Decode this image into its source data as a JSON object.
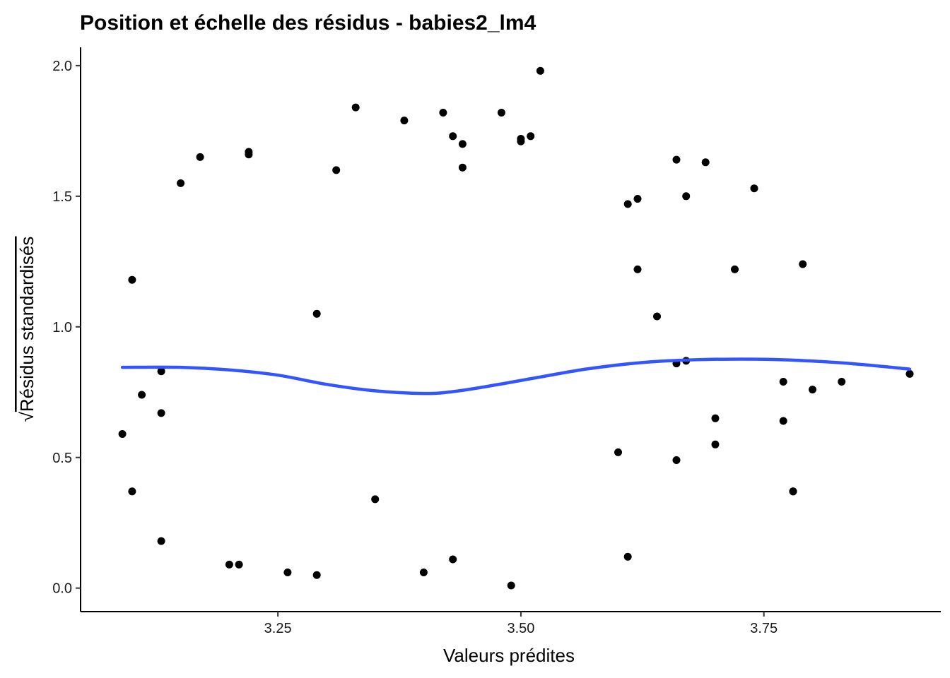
{
  "chart_data": {
    "type": "scatter",
    "title": "Position et échelle des résidus - babies2_lm4",
    "xlabel": "Valeurs prédites",
    "ylabel_radical": "√",
    "ylabel": "Résidus standardisés",
    "xlim": [
      3.047,
      3.932
    ],
    "ylim": [
      -0.09,
      2.07
    ],
    "x_ticks": [
      3.25,
      3.5,
      3.75
    ],
    "x_tick_labels": [
      "3.25",
      "3.50",
      "3.75"
    ],
    "y_ticks": [
      0.0,
      0.5,
      1.0,
      1.5,
      2.0
    ],
    "y_tick_labels": [
      "0.0",
      "0.5",
      "1.0",
      "1.5",
      "2.0"
    ],
    "grid": false,
    "point_color": "#000000",
    "smooth_color": "#3355ff",
    "smooth_line": {
      "x": [
        3.09,
        3.15,
        3.2,
        3.25,
        3.3,
        3.35,
        3.4,
        3.43,
        3.47,
        3.52,
        3.57,
        3.63,
        3.69,
        3.76,
        3.83,
        3.9
      ],
      "y": [
        0.845,
        0.845,
        0.835,
        0.815,
        0.78,
        0.755,
        0.745,
        0.752,
        0.775,
        0.808,
        0.84,
        0.865,
        0.875,
        0.875,
        0.862,
        0.838
      ]
    },
    "points": {
      "x": [
        3.52,
        3.33,
        3.42,
        3.48,
        3.38,
        3.51,
        3.43,
        3.5,
        3.5,
        3.44,
        3.22,
        3.22,
        3.17,
        3.44,
        3.15,
        3.31,
        3.29,
        3.21,
        3.74,
        3.72,
        3.79,
        3.77,
        3.78,
        3.78,
        3.9,
        3.83,
        3.8,
        3.77,
        3.69,
        3.67,
        3.66,
        3.64,
        3.66,
        3.67,
        3.7,
        3.7,
        3.66,
        3.62,
        3.62,
        3.61,
        3.6,
        3.1,
        3.11,
        3.09,
        3.1,
        3.13,
        3.43,
        3.35,
        3.13,
        3.13,
        3.2,
        3.29,
        3.26,
        3.4,
        3.49,
        3.61
      ],
      "y": [
        1.98,
        1.84,
        1.82,
        1.82,
        1.79,
        1.73,
        1.73,
        1.72,
        1.71,
        1.7,
        1.67,
        1.66,
        1.65,
        1.61,
        1.55,
        1.6,
        1.05,
        0.09,
        1.53,
        1.22,
        1.24,
        0.79,
        0.37,
        0.37,
        0.82,
        0.79,
        0.76,
        0.64,
        1.63,
        1.5,
        1.64,
        1.04,
        0.86,
        0.87,
        0.65,
        0.55,
        0.49,
        1.22,
        1.49,
        1.47,
        0.52,
        1.18,
        0.74,
        0.59,
        0.37,
        0.67,
        0.11,
        0.34,
        0.18,
        0.83,
        0.09,
        0.05,
        0.06,
        0.06,
        0.01,
        0.12
      ]
    }
  }
}
